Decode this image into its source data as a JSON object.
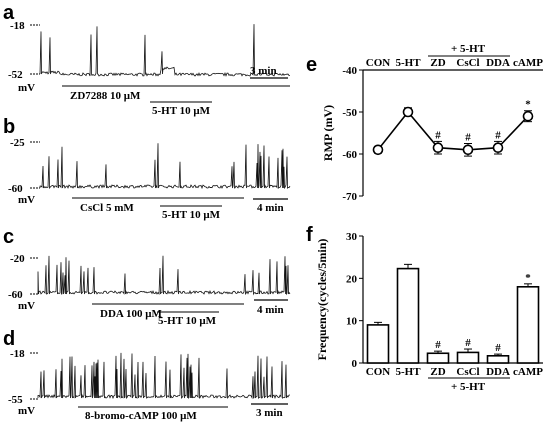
{
  "panels": {
    "a": {
      "letter": "a",
      "top": "-18",
      "bottom": "-52",
      "unit": "mV",
      "drug": "ZD7288 10 μM",
      "ht": "5-HT 10 μM",
      "scale": "3 min"
    },
    "b": {
      "letter": "b",
      "top": "-25",
      "bottom": "-60",
      "unit": "mV",
      "drug": "CsCl 5 mM",
      "ht": "5-HT 10 μM",
      "scale": "4 min"
    },
    "c": {
      "letter": "c",
      "top": "-20",
      "bottom": "-60",
      "unit": "mV",
      "drug": "DDA 100 μM",
      "ht": "5-HT 10 μM",
      "scale": "4 min"
    },
    "d": {
      "letter": "d",
      "top": "-18",
      "bottom": "-55",
      "unit": "mV",
      "drug": "8-bromo-cAMP 100 μM",
      "scale": "3 min"
    },
    "e": {
      "letter": "e"
    },
    "f": {
      "letter": "f"
    }
  },
  "chart_data": [
    {
      "type": "line",
      "panel": "e",
      "categories": [
        "CON",
        "5-HT",
        "ZD",
        "CsCl",
        "DDA",
        "cAMP"
      ],
      "group_label": "+ 5-HT",
      "values": [
        -59,
        -50,
        -58.5,
        -59,
        -58.5,
        -51
      ],
      "errors": [
        0.8,
        1.0,
        1.5,
        1.5,
        1.5,
        1.3
      ],
      "annotations": [
        "",
        "",
        "#",
        "#",
        "#",
        "*"
      ],
      "ylabel": "RMP (mV)",
      "ylim": [
        -70,
        -40
      ],
      "yticks": [
        "-40",
        "-50",
        "-60",
        "-70"
      ]
    },
    {
      "type": "bar",
      "panel": "f",
      "categories": [
        "CON",
        "5-HT",
        "ZD",
        "CsCl",
        "DDA",
        "cAMP"
      ],
      "group_label": "+ 5-HT",
      "values": [
        9,
        22.3,
        2.3,
        2.5,
        1.7,
        18
      ],
      "errors": [
        0.6,
        1.0,
        0.5,
        0.8,
        0.4,
        0.7
      ],
      "annotations": [
        "",
        "",
        "#",
        "#",
        "#",
        "*"
      ],
      "ylabel": "Frequency(cycles/5min)",
      "ylim": [
        0,
        30
      ],
      "yticks": [
        "0",
        "10",
        "20",
        "30"
      ]
    }
  ]
}
